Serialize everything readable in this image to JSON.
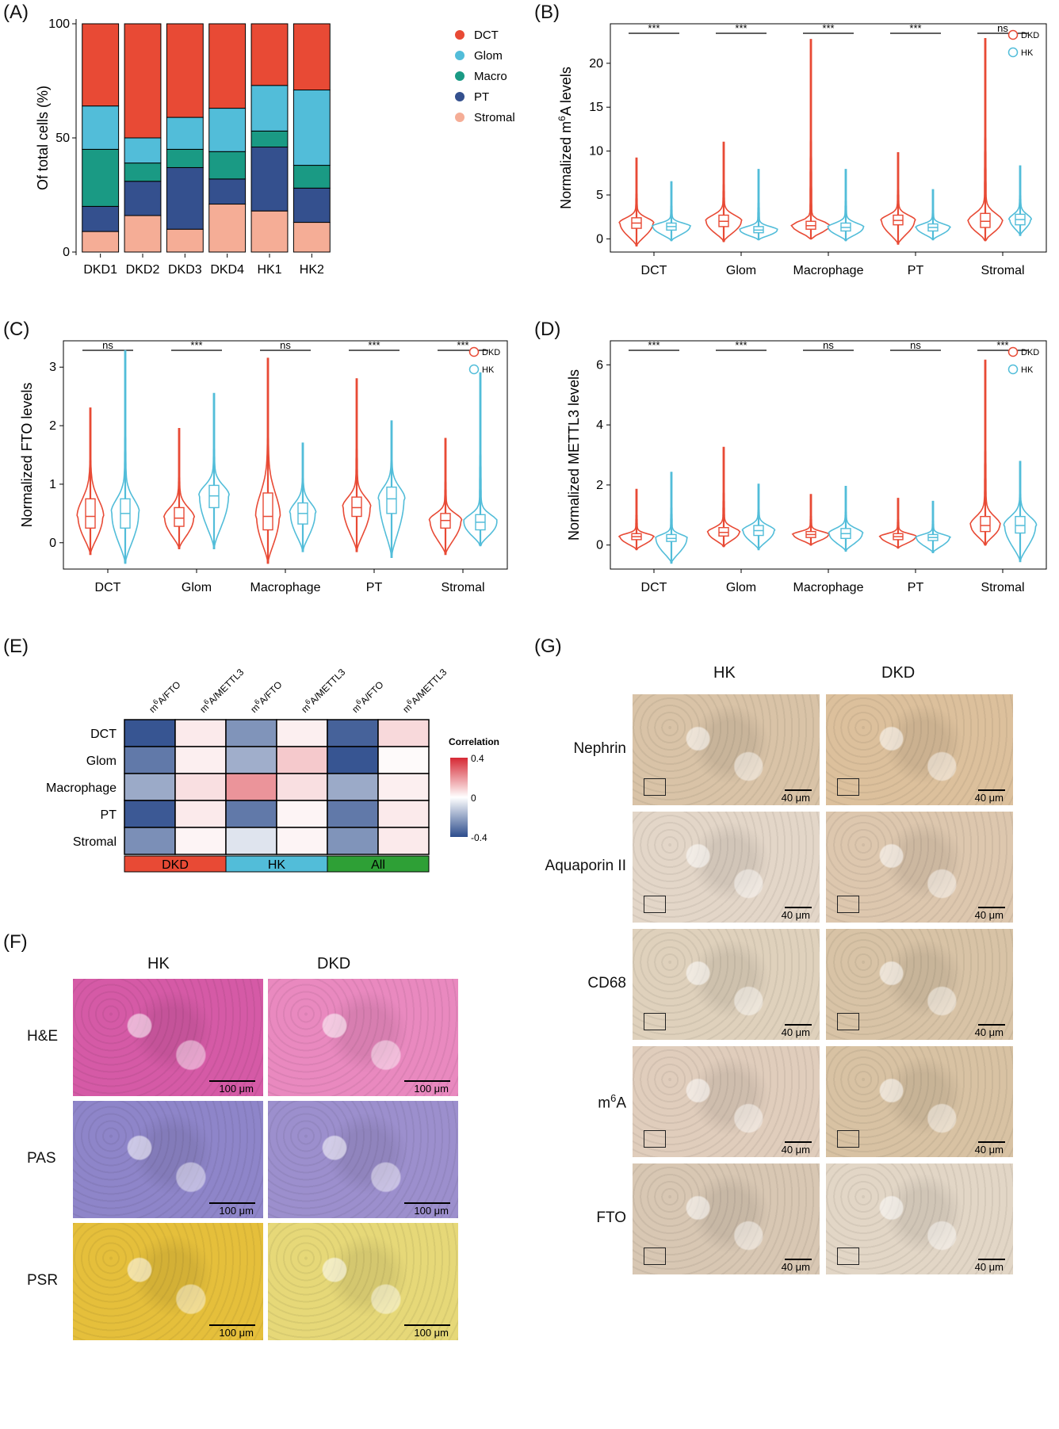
{
  "panels": {
    "A": "(A)",
    "B": "(B)",
    "C": "(C)",
    "D": "(D)",
    "E": "(E)",
    "F": "(F)",
    "G": "(G)"
  },
  "chart_data": [
    {
      "id": "A",
      "type": "bar",
      "stacked": true,
      "categories": [
        "DKD1",
        "DKD2",
        "DKD3",
        "DKD4",
        "HK1",
        "HK2"
      ],
      "ylabel": "Of total cells (%)",
      "ylim": [
        0,
        100
      ],
      "yticks": [
        0,
        50,
        100
      ],
      "legend": "right",
      "series": [
        {
          "name": "Stromal",
          "color": "#f5ad96",
          "values": [
            9,
            16,
            10,
            21,
            18,
            13
          ]
        },
        {
          "name": "PT",
          "color": "#34508e",
          "values": [
            11,
            15,
            27,
            11,
            28,
            15
          ]
        },
        {
          "name": "Macro",
          "color": "#1a9a84",
          "values": [
            25,
            8,
            8,
            12,
            7,
            10
          ]
        },
        {
          "name": "Glom",
          "color": "#52bdd9",
          "values": [
            19,
            11,
            14,
            19,
            20,
            33
          ]
        },
        {
          "name": "DCT",
          "color": "#e84a35",
          "values": [
            36,
            50,
            41,
            37,
            27,
            29
          ]
        }
      ],
      "legend_order": [
        "DCT",
        "Glom",
        "Macro",
        "PT",
        "Stromal"
      ]
    },
    {
      "id": "B",
      "type": "violin",
      "categories": [
        "DCT",
        "Glom",
        "Macrophage",
        "PT",
        "Stromal"
      ],
      "ylabel_pre": "Normalized m",
      "ylabel_sup": "6",
      "ylabel_post": "A levels",
      "ylim": [
        -1.5,
        24.5
      ],
      "yticks": [
        0,
        5,
        10,
        15,
        20
      ],
      "significance": [
        "***",
        "***",
        "***",
        "***",
        "ns"
      ],
      "series": [
        {
          "name": "DKD",
          "color": "#e84a35",
          "median": [
            1.8,
            2.0,
            1.5,
            2.1,
            2.0
          ],
          "q1": [
            1.2,
            1.4,
            1.1,
            1.6,
            1.3
          ],
          "q3": [
            2.4,
            2.7,
            2.0,
            2.7,
            2.9
          ],
          "min": [
            -0.8,
            -0.3,
            0.0,
            -0.6,
            -0.2
          ],
          "max": [
            9.2,
            11.0,
            22.7,
            9.8,
            22.8
          ],
          "width": [
            0.8,
            0.85,
            0.9,
            0.8,
            0.8
          ]
        },
        {
          "name": "HK",
          "color": "#52bdd9",
          "median": [
            1.4,
            1.0,
            1.3,
            1.3,
            2.2
          ],
          "q1": [
            1.0,
            0.7,
            0.9,
            0.9,
            1.6
          ],
          "q3": [
            1.8,
            1.4,
            1.8,
            1.7,
            2.8
          ],
          "min": [
            -0.2,
            -0.1,
            -0.2,
            -0.1,
            0.4
          ],
          "max": [
            6.5,
            7.9,
            7.9,
            5.6,
            8.3
          ],
          "width": [
            0.9,
            0.9,
            0.85,
            0.8,
            0.5
          ]
        }
      ]
    },
    {
      "id": "C",
      "type": "violin",
      "categories": [
        "DCT",
        "Glom",
        "Macrophage",
        "PT",
        "Stromal"
      ],
      "ylabel": "Normalized FTO levels",
      "ylim": [
        -0.45,
        3.45
      ],
      "yticks": [
        0,
        1,
        2,
        3
      ],
      "significance": [
        "ns",
        "***",
        "ns",
        "***",
        "***"
      ],
      "series": [
        {
          "name": "DKD",
          "color": "#e84a35",
          "median": [
            0.45,
            0.42,
            0.45,
            0.6,
            0.38
          ],
          "q1": [
            0.25,
            0.28,
            0.22,
            0.45,
            0.25
          ],
          "q3": [
            0.75,
            0.6,
            0.85,
            0.78,
            0.5
          ],
          "min": [
            -0.2,
            -0.1,
            -0.35,
            -0.15,
            -0.2
          ],
          "max": [
            2.3,
            1.95,
            3.15,
            2.8,
            1.78
          ],
          "width": [
            0.6,
            0.7,
            0.55,
            0.65,
            0.75
          ]
        },
        {
          "name": "HK",
          "color": "#52bdd9",
          "median": [
            0.5,
            0.8,
            0.5,
            0.75,
            0.35
          ],
          "q1": [
            0.25,
            0.6,
            0.32,
            0.5,
            0.22
          ],
          "q3": [
            0.75,
            0.98,
            0.68,
            0.95,
            0.48
          ],
          "min": [
            -0.35,
            -0.1,
            -0.15,
            -0.25,
            -0.05
          ],
          "max": [
            3.28,
            2.55,
            1.7,
            2.08,
            2.9
          ],
          "width": [
            0.65,
            0.7,
            0.6,
            0.6,
            0.8
          ]
        }
      ]
    },
    {
      "id": "D",
      "type": "violin",
      "categories": [
        "DCT",
        "Glom",
        "Macrophage",
        "PT",
        "Stromal"
      ],
      "ylabel": "Normalized METTL3 levels",
      "ylim": [
        -0.8,
        6.8
      ],
      "yticks": [
        0,
        2,
        4,
        6
      ],
      "significance": [
        "***",
        "***",
        "ns",
        "ns",
        "***"
      ],
      "series": [
        {
          "name": "DKD",
          "color": "#e84a35",
          "median": [
            0.28,
            0.42,
            0.35,
            0.28,
            0.65
          ],
          "q1": [
            0.18,
            0.3,
            0.25,
            0.18,
            0.45
          ],
          "q3": [
            0.38,
            0.58,
            0.45,
            0.38,
            0.95
          ],
          "min": [
            -0.15,
            -0.05,
            0.0,
            -0.1,
            0.0
          ],
          "max": [
            1.85,
            3.25,
            1.68,
            1.55,
            6.15
          ],
          "width": [
            0.8,
            0.75,
            0.85,
            0.85,
            0.7
          ]
        },
        {
          "name": "HK",
          "color": "#52bdd9",
          "median": [
            0.22,
            0.48,
            0.38,
            0.25,
            0.65
          ],
          "q1": [
            0.12,
            0.32,
            0.22,
            0.15,
            0.4
          ],
          "q3": [
            0.35,
            0.65,
            0.55,
            0.35,
            0.95
          ],
          "min": [
            -0.6,
            -0.15,
            -0.2,
            -0.25,
            -0.55
          ],
          "max": [
            2.42,
            2.02,
            1.95,
            1.45,
            2.78
          ],
          "width": [
            0.75,
            0.75,
            0.8,
            0.8,
            0.75
          ]
        }
      ]
    },
    {
      "id": "E",
      "type": "heatmap",
      "rows": [
        "DCT",
        "Glom",
        "Macrophage",
        "PT",
        "Stromal"
      ],
      "col_label_pre": [
        "m",
        "m",
        "m",
        "m",
        "m",
        "m"
      ],
      "col_label_sup": [
        "6",
        "6",
        "6",
        "6",
        "6",
        "6"
      ],
      "col_label_post": [
        "A/FTO",
        "A/METTL3",
        "A/FTO",
        "A/METTL3",
        "A/FTO",
        "A/METTL3"
      ],
      "groups": [
        {
          "label": "DKD",
          "color": "#e84a35"
        },
        {
          "label": "HK",
          "color": "#52bdd9"
        },
        {
          "label": "All",
          "color": "#2ea036"
        }
      ],
      "values": [
        [
          -0.38,
          0.04,
          -0.24,
          0.03,
          -0.35,
          0.07
        ],
        [
          -0.3,
          0.03,
          -0.18,
          0.1,
          -0.38,
          0.01
        ],
        [
          -0.19,
          0.06,
          0.2,
          0.06,
          -0.19,
          0.03
        ],
        [
          -0.37,
          0.04,
          -0.3,
          0.02,
          -0.3,
          0.04
        ],
        [
          -0.25,
          0.02,
          -0.06,
          0.02,
          -0.24,
          0.04
        ]
      ],
      "legend_title": "Correlation",
      "scale_labels": [
        "0.4",
        "0",
        "-0.4"
      ],
      "range": [
        -0.4,
        0.4
      ]
    }
  ],
  "panel_f": {
    "col_labels": [
      "HK",
      "DKD"
    ],
    "rows": [
      {
        "label": "H&E",
        "scale": "100 μm",
        "tint": [
          "#d55aa6",
          "#e989bf"
        ]
      },
      {
        "label": "PAS",
        "scale": "100 μm",
        "tint": [
          "#8e85c9",
          "#9c8fcd"
        ]
      },
      {
        "label": "PSR",
        "scale": "100 μm",
        "tint": [
          "#e5bf3b",
          "#e6d878"
        ]
      }
    ]
  },
  "panel_g": {
    "col_labels": [
      "HK",
      "DKD"
    ],
    "rows": [
      {
        "label_pre": "Nephrin",
        "label_sup": "",
        "label_post": "",
        "scale": "40 μm",
        "tint": [
          "#d9c3a7",
          "#dcc09c"
        ]
      },
      {
        "label_pre": "Aquaporin II",
        "label_sup": "",
        "label_post": "",
        "scale": "40 μm",
        "tint": [
          "#e3d6c8",
          "#ddc7ae"
        ]
      },
      {
        "label_pre": "CD68",
        "label_sup": "",
        "label_post": "",
        "scale": "40 μm",
        "tint": [
          "#dfd1bc",
          "#d8c3a6"
        ]
      },
      {
        "label_pre": "m",
        "label_sup": "6",
        "label_post": "A",
        "scale": "40 μm",
        "tint": [
          "#e0cdbc",
          "#d8c2a3"
        ]
      },
      {
        "label_pre": "FTO",
        "label_sup": "",
        "label_post": "",
        "scale": "40 μm",
        "tint": [
          "#d8c7b3",
          "#e2d6c6"
        ]
      }
    ]
  }
}
